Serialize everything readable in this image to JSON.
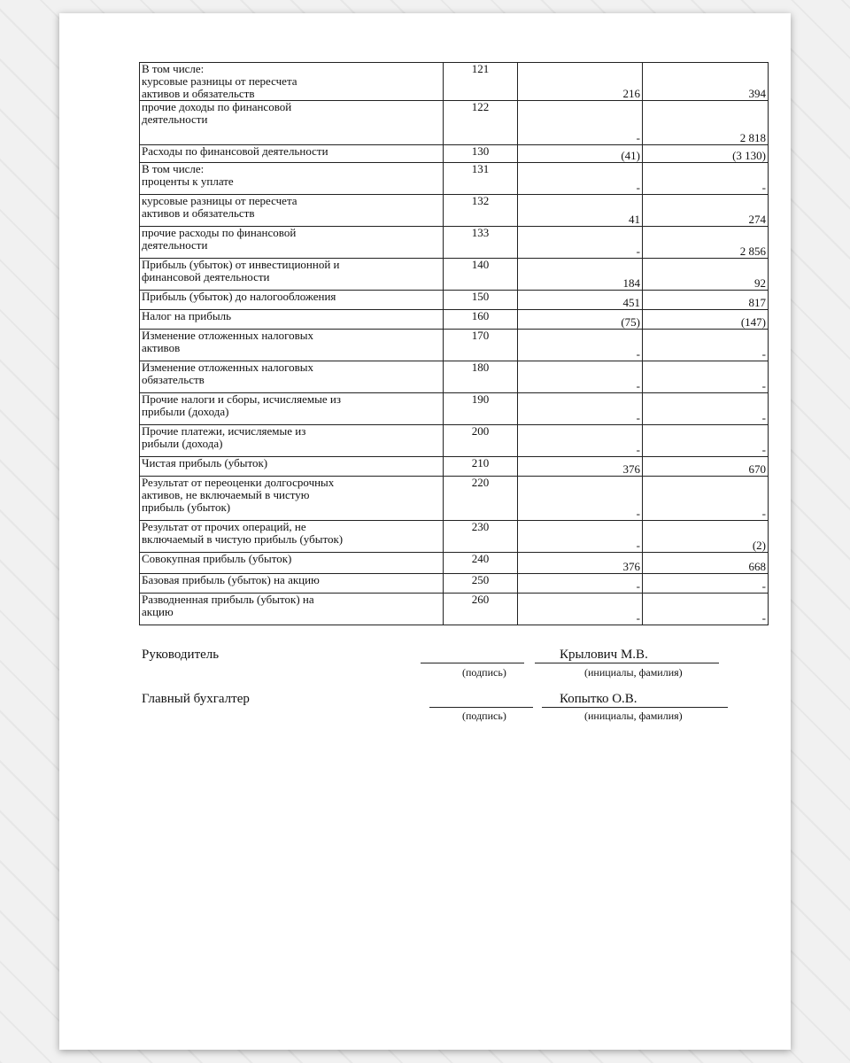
{
  "rows": [
    {
      "label": "В том числе:\nкурсовые разницы от пересчета\nактивов и обязательств",
      "code": "121",
      "current": "216",
      "previous": "394",
      "h": 40
    },
    {
      "label": "прочие доходы по финансовой\nдеятельности",
      "code": "122",
      "current": "-",
      "previous": "2 818",
      "h": 35
    },
    {
      "label": "Расходы по финансовой деятельности",
      "code": "130",
      "current": "(41)",
      "previous": "(3 130)",
      "h": 20
    },
    {
      "label": "В том числе:\nпроценты к уплате",
      "code": "131",
      "current": "-",
      "previous": "-",
      "h": 36
    },
    {
      "label": "курсовые разницы от пересчета\nактивов и обязательств",
      "code": "132",
      "current": "41",
      "previous": "274",
      "h": 36
    },
    {
      "label": "прочие расходы по финансовой\nдеятельности",
      "code": "133",
      "current": "-",
      "previous": "2 856",
      "h": 36
    },
    {
      "label": "Прибыль (убыток) от инвестиционной и\nфинансовой деятельности",
      "code": "140",
      "current": "184",
      "previous": "92",
      "h": 36
    },
    {
      "label": "Прибыль (убыток) до налогообложения",
      "code": "150",
      "current": "451",
      "previous": "817",
      "h": 22
    },
    {
      "label": "Налог на прибыль",
      "code": "160",
      "current": "(75)",
      "previous": "(147)",
      "h": 22
    },
    {
      "label": "Изменение отложенных налоговых\nактивов",
      "code": "170",
      "current": "-",
      "previous": "-",
      "h": 36
    },
    {
      "label": "Изменение отложенных налоговых\nобязательств",
      "code": "180",
      "current": "-",
      "previous": "-",
      "h": 36
    },
    {
      "label": "Прочие налоги и сборы, исчисляемые из\nприбыли (дохода)",
      "code": "190",
      "current": "-",
      "previous": "-",
      "h": 36
    },
    {
      "label": "Прочие платежи, исчисляемые из\nрибыли (дохода)",
      "code": "200",
      "current": "-",
      "previous": "-",
      "h": 36
    },
    {
      "label": "Чистая прибыль (убыток)",
      "code": "210",
      "current": "376",
      "previous": "670",
      "h": 22
    },
    {
      "label": "Результат от переоценки долгосрочных\nактивов, не включаемый в чистую\nприбыль (убыток)",
      "code": "220",
      "current": "-",
      "previous": "-",
      "h": 50
    },
    {
      "label": "Результат от прочих операций, не\nвключаемый в чистую прибыль (убыток)",
      "code": "230",
      "current": "-",
      "previous": "(2)",
      "h": 36
    },
    {
      "label": "Совокупная прибыль (убыток)",
      "code": "240",
      "current": "376",
      "previous": "668",
      "h": 24
    },
    {
      "label": "Базовая прибыль (убыток) на акцию",
      "code": "250",
      "current": "-",
      "previous": "-",
      "h": 22
    },
    {
      "label": "Разводненная прибыль (убыток) на\nакцию",
      "code": "260",
      "current": "-",
      "previous": "-",
      "h": 36
    }
  ],
  "signatures": {
    "director_title": "Руководитель",
    "director_name": "Крылович М.В.",
    "accountant_title": "Главный бухгалтер",
    "accountant_name": "Копытко О.В.",
    "signature_caption": "(подпись)",
    "name_caption": "(инициалы, фамилия)"
  }
}
